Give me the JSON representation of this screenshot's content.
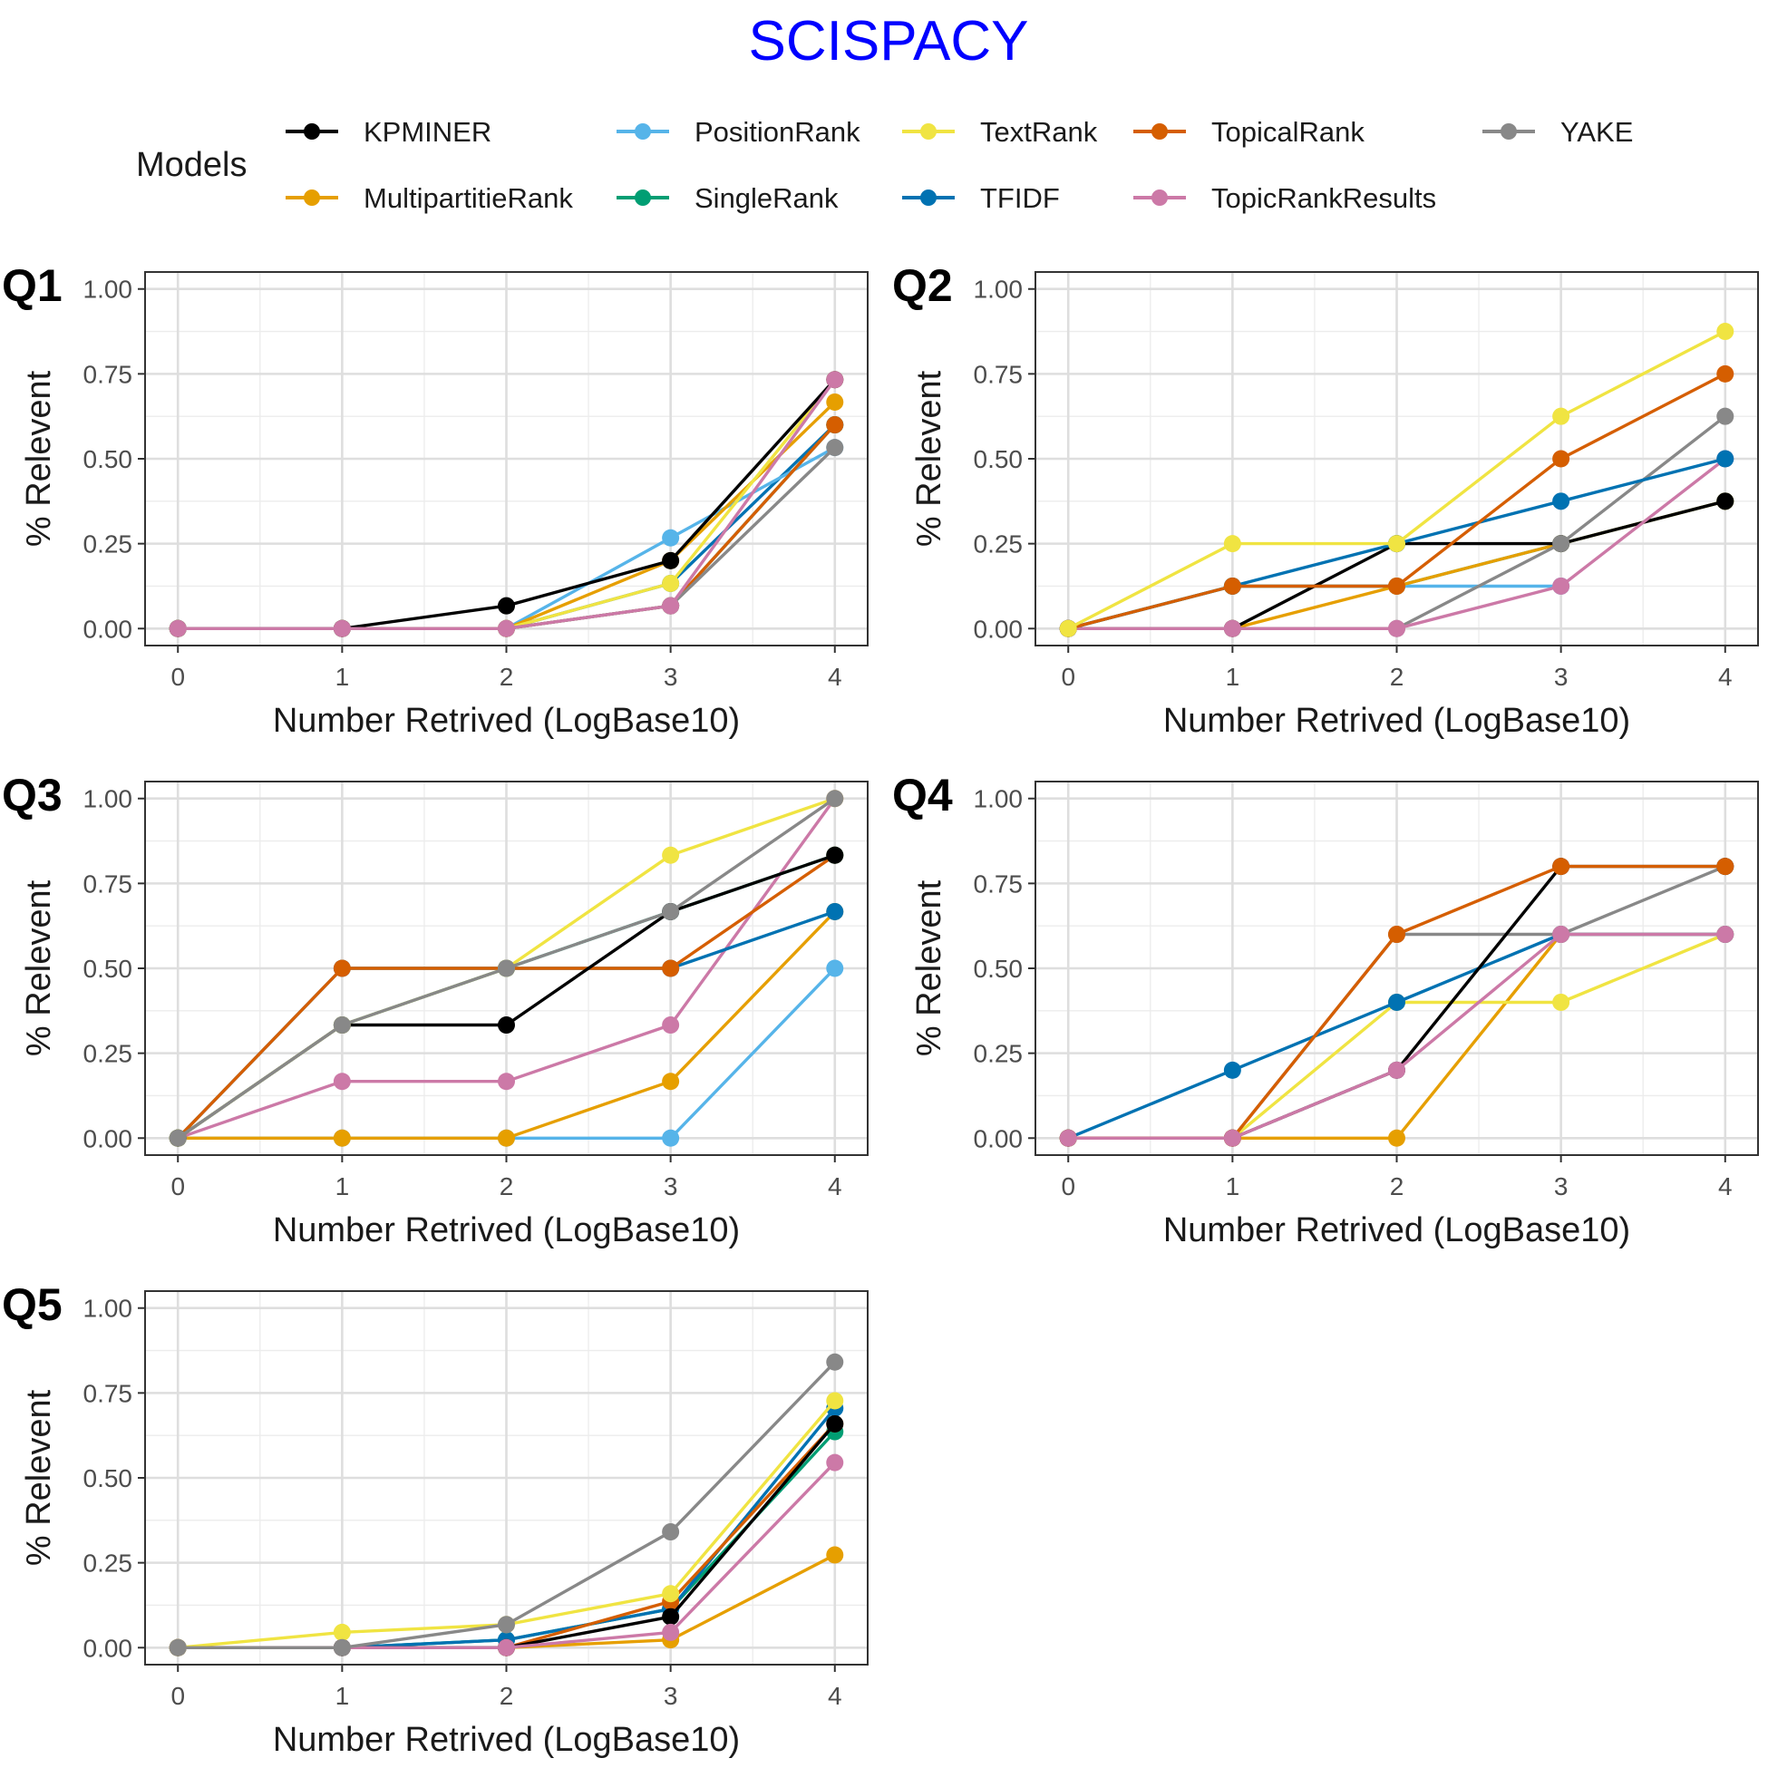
{
  "title": "SCISPACY",
  "title_color": "#0000ff",
  "legend": {
    "title": "Models",
    "items": [
      {
        "name": "KPMINER",
        "color": "#000000"
      },
      {
        "name": "MultipartitieRank",
        "color": "#E69F00"
      },
      {
        "name": "PositionRank",
        "color": "#56B4E9"
      },
      {
        "name": "SingleRank",
        "color": "#009E73"
      },
      {
        "name": "TextRank",
        "color": "#F0E442"
      },
      {
        "name": "TFIDF",
        "color": "#0072B2"
      },
      {
        "name": "TopicalRank",
        "color": "#D55E00"
      },
      {
        "name": "TopicRankResults",
        "color": "#CC79A7"
      },
      {
        "name": "YAKE",
        "color": "#888888"
      }
    ]
  },
  "chart_data": [
    {
      "type": "line",
      "panel_label": "Q1",
      "xlabel": "Number Retrived (LogBase10)",
      "ylabel": "% Relevent",
      "x": [
        0,
        1,
        2,
        3,
        4
      ],
      "xlim": [
        -0.2,
        4.2
      ],
      "ylim": [
        -0.05,
        1.05
      ],
      "xticks": [
        "0",
        "1",
        "2",
        "3",
        "4"
      ],
      "yticks": [
        "0.00",
        "0.25",
        "0.50",
        "0.75",
        "1.00"
      ],
      "grid": true,
      "series": [
        {
          "name": "TFIDF",
          "values": [
            0,
            0,
            0,
            0.133,
            0.6
          ]
        },
        {
          "name": "SingleRank",
          "values": [
            0,
            0,
            0,
            0.067,
            0.6
          ]
        },
        {
          "name": "PositionRank",
          "values": [
            0,
            0,
            0,
            0.267,
            0.533
          ]
        },
        {
          "name": "TopicalRank",
          "values": [
            0,
            0,
            0,
            0.067,
            0.6
          ]
        },
        {
          "name": "MultipartitieRank",
          "values": [
            0,
            0,
            0,
            0.2,
            0.667
          ]
        },
        {
          "name": "TextRank",
          "values": [
            0,
            0,
            0,
            0.133,
            0.733
          ]
        },
        {
          "name": "KPMINER",
          "values": [
            0,
            0,
            0.067,
            0.2,
            0.733
          ]
        },
        {
          "name": "YAKE",
          "values": [
            0,
            0,
            0,
            0.067,
            0.533
          ]
        },
        {
          "name": "TopicRankResults",
          "values": [
            0,
            0,
            0,
            0.067,
            0.733
          ]
        }
      ]
    },
    {
      "type": "line",
      "panel_label": "Q2",
      "xlabel": "Number Retrived (LogBase10)",
      "ylabel": "% Relevent",
      "x": [
        0,
        1,
        2,
        3,
        4
      ],
      "xlim": [
        -0.2,
        4.2
      ],
      "ylim": [
        -0.05,
        1.05
      ],
      "xticks": [
        "0",
        "1",
        "2",
        "3",
        "4"
      ],
      "yticks": [
        "0.00",
        "0.25",
        "0.50",
        "0.75",
        "1.00"
      ],
      "grid": true,
      "series": [
        {
          "name": "SingleRank",
          "values": [
            0,
            0.125,
            0.125,
            0.25,
            0.375
          ]
        },
        {
          "name": "PositionRank",
          "values": [
            0,
            0.125,
            0.125,
            0.125,
            null
          ]
        },
        {
          "name": "MultipartitieRank",
          "values": [
            0,
            0,
            0.125,
            0.25,
            0.375
          ]
        },
        {
          "name": "KPMINER",
          "values": [
            0,
            0,
            0.25,
            0.25,
            0.375
          ]
        },
        {
          "name": "YAKE",
          "values": [
            0,
            0,
            0,
            0.25,
            0.625
          ]
        },
        {
          "name": "TopicRankResults",
          "values": [
            0,
            0,
            0,
            0.125,
            0.5
          ]
        },
        {
          "name": "TFIDF",
          "values": [
            0,
            0.125,
            0.25,
            0.375,
            0.5
          ]
        },
        {
          "name": "TopicalRank",
          "values": [
            0,
            0.125,
            0.125,
            0.5,
            0.75
          ]
        },
        {
          "name": "TextRank",
          "values": [
            0,
            0.25,
            0.25,
            0.625,
            0.875
          ]
        }
      ]
    },
    {
      "type": "line",
      "panel_label": "Q3",
      "xlabel": "Number Retrived (LogBase10)",
      "ylabel": "% Relevent",
      "x": [
        0,
        1,
        2,
        3,
        4
      ],
      "xlim": [
        -0.2,
        4.2
      ],
      "ylim": [
        -0.05,
        1.05
      ],
      "xticks": [
        "0",
        "1",
        "2",
        "3",
        "4"
      ],
      "yticks": [
        "0.00",
        "0.25",
        "0.50",
        "0.75",
        "1.00"
      ],
      "grid": true,
      "series": [
        {
          "name": "PositionRank",
          "values": [
            0,
            0,
            0,
            0,
            0.5
          ]
        },
        {
          "name": "MultipartitieRank",
          "values": [
            0,
            0,
            0,
            0.167,
            0.667
          ]
        },
        {
          "name": "TopicRankResults",
          "values": [
            0,
            0.167,
            0.167,
            0.333,
            1.0
          ]
        },
        {
          "name": "TFIDF",
          "values": [
            0,
            0.5,
            0.5,
            0.5,
            0.667
          ]
        },
        {
          "name": "TopicalRank",
          "values": [
            0,
            0.5,
            0.5,
            0.5,
            0.833
          ]
        },
        {
          "name": "SingleRank",
          "values": [
            0,
            0.333,
            0.5,
            0.667,
            0.833
          ]
        },
        {
          "name": "KPMINER",
          "values": [
            0,
            0.333,
            0.333,
            0.667,
            0.833
          ]
        },
        {
          "name": "TextRank",
          "values": [
            0,
            0.333,
            0.5,
            0.833,
            1.0
          ]
        },
        {
          "name": "YAKE",
          "values": [
            0,
            0.333,
            0.5,
            0.667,
            1.0
          ]
        }
      ]
    },
    {
      "type": "line",
      "panel_label": "Q4",
      "xlabel": "Number Retrived (LogBase10)",
      "ylabel": "% Relevent",
      "x": [
        0,
        1,
        2,
        3,
        4
      ],
      "xlim": [
        -0.2,
        4.2
      ],
      "ylim": [
        -0.05,
        1.05
      ],
      "xticks": [
        "0",
        "1",
        "2",
        "3",
        "4"
      ],
      "yticks": [
        "0.00",
        "0.25",
        "0.50",
        "0.75",
        "1.00"
      ],
      "grid": true,
      "series": [
        {
          "name": "MultipartitieRank",
          "values": [
            0,
            0,
            0,
            0.6,
            0.6
          ]
        },
        {
          "name": "TextRank",
          "values": [
            0,
            0,
            0.4,
            0.4,
            0.6
          ]
        },
        {
          "name": "TFIDF",
          "values": [
            0,
            0.2,
            0.4,
            0.6,
            0.6
          ]
        },
        {
          "name": "YAKE",
          "values": [
            0,
            0,
            0.6,
            0.6,
            0.8
          ]
        },
        {
          "name": "KPMINER",
          "values": [
            0,
            0,
            0.2,
            0.8,
            0.8
          ]
        },
        {
          "name": "TopicalRank",
          "values": [
            0,
            0,
            0.6,
            0.8,
            0.8
          ]
        },
        {
          "name": "TopicRankResults",
          "values": [
            0,
            0,
            0.2,
            0.6,
            0.6
          ]
        }
      ]
    },
    {
      "type": "line",
      "panel_label": "Q5",
      "xlabel": "Number Retrived (LogBase10)",
      "ylabel": "% Relevent",
      "x": [
        0,
        1,
        2,
        3,
        4
      ],
      "xlim": [
        -0.2,
        4.2
      ],
      "ylim": [
        -0.05,
        1.05
      ],
      "xticks": [
        "0",
        "1",
        "2",
        "3",
        "4"
      ],
      "yticks": [
        "0.00",
        "0.25",
        "0.50",
        "0.75",
        "1.00"
      ],
      "grid": true,
      "series": [
        {
          "name": "MultipartitieRank",
          "values": [
            0,
            0,
            0,
            0.023,
            0.273
          ]
        },
        {
          "name": "SingleRank",
          "values": [
            0,
            0,
            0.023,
            0.114,
            0.636
          ]
        },
        {
          "name": "TFIDF",
          "values": [
            0,
            0,
            0.023,
            0.114,
            0.705
          ]
        },
        {
          "name": "TopicalRank",
          "values": [
            0,
            0,
            0,
            0.136,
            0.659
          ]
        },
        {
          "name": "KPMINER",
          "values": [
            0,
            0,
            0,
            0.091,
            0.659
          ]
        },
        {
          "name": "TopicRankResults",
          "values": [
            0,
            0,
            0,
            0.045,
            0.545
          ]
        },
        {
          "name": "TextRank",
          "values": [
            0,
            0.045,
            0.068,
            0.159,
            0.727
          ]
        },
        {
          "name": "YAKE",
          "values": [
            0,
            0,
            0.068,
            0.341,
            0.841
          ]
        }
      ]
    }
  ]
}
